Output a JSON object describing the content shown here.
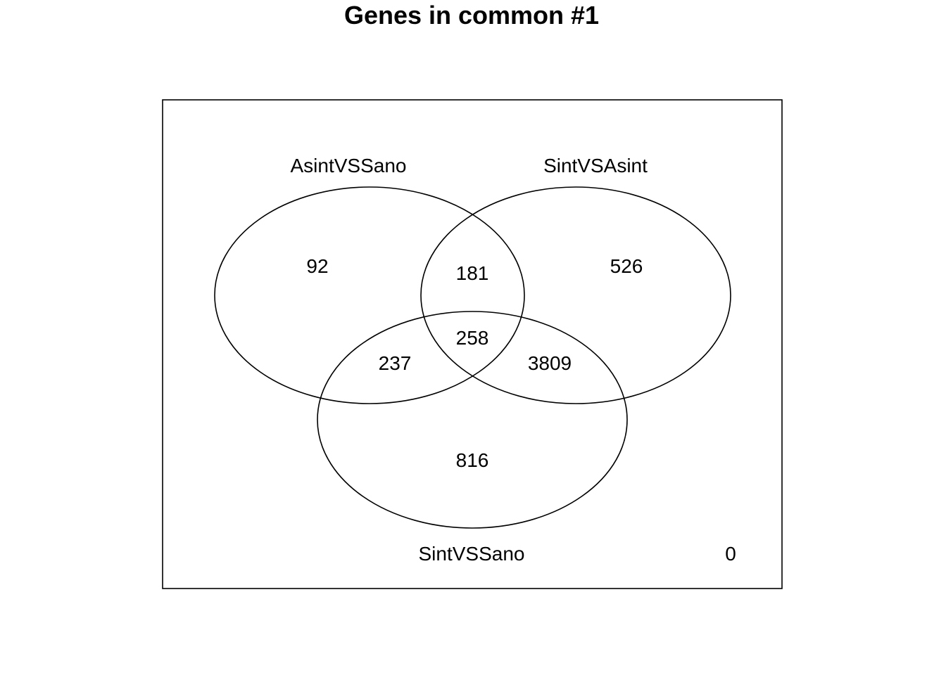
{
  "title": "Genes in common #1",
  "sets": [
    {
      "key": "A",
      "label": "AsintVSSano"
    },
    {
      "key": "B",
      "label": "SintVSAsint"
    },
    {
      "key": "C",
      "label": "SintVSSano"
    }
  ],
  "regions": {
    "A_only": "92",
    "A_and_B": "181",
    "B_only": "526",
    "A_and_B_and_C": "258",
    "A_and_C": "237",
    "B_and_C": "3809",
    "C_only": "816",
    "outside": "0"
  },
  "colors": {
    "stroke": "#000000",
    "background": "#ffffff"
  }
}
